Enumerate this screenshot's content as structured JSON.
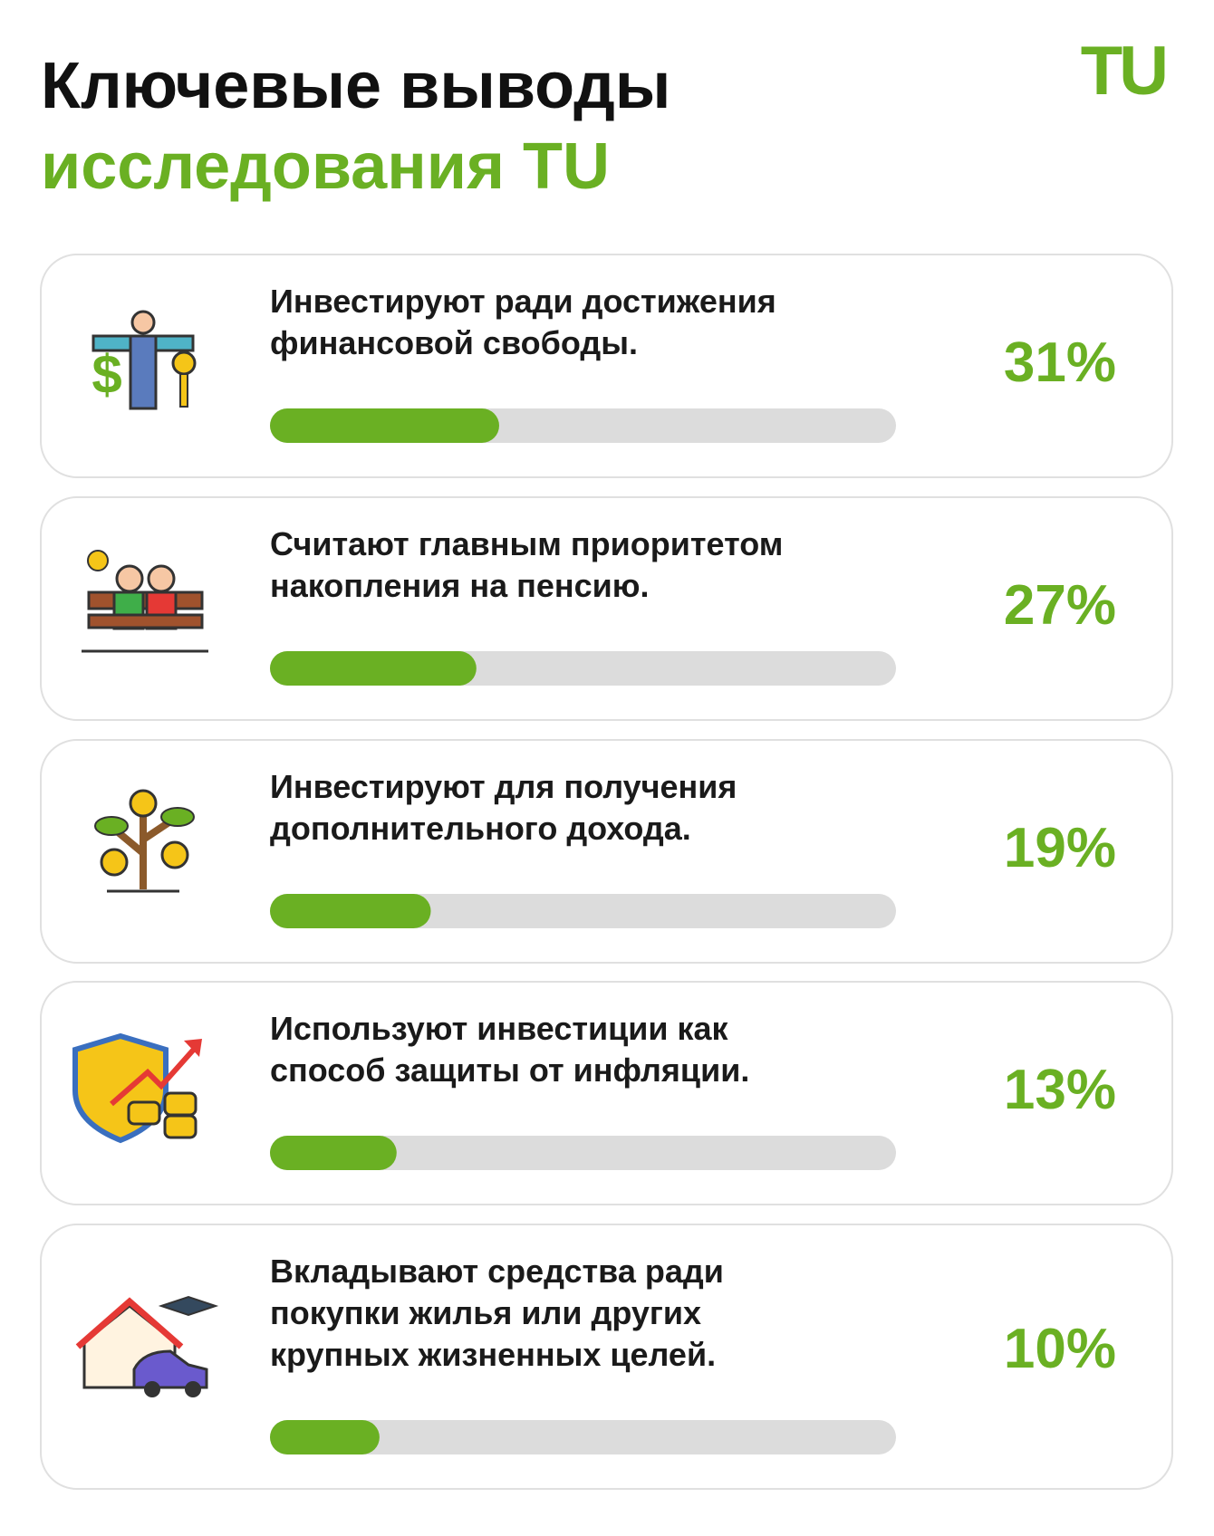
{
  "header": {
    "title_line1": "Ключевые выводы",
    "title_line2": "исследования TU",
    "logo": "TU"
  },
  "items": [
    {
      "lines": [
        "Инвестируют ради достижения",
        "финансовой свободы."
      ],
      "value": 31,
      "value_label": "31%"
    },
    {
      "lines": [
        "Считают главным приоритетом",
        "накопления на пенсию."
      ],
      "value": 27,
      "value_label": "27%"
    },
    {
      "lines": [
        "Инвестируют для получения",
        "дополнительного дохода."
      ],
      "value": 19,
      "value_label": "19%"
    },
    {
      "lines": [
        "Используют инвестиции как",
        "способ защиты от инфляции."
      ],
      "value": 13,
      "value_label": "13%"
    },
    {
      "lines": [
        "Вкладывают средства ради",
        "покупки жилья или других",
        "крупных жизненных целей."
      ],
      "value": 10,
      "value_label": "10%"
    }
  ]
}
